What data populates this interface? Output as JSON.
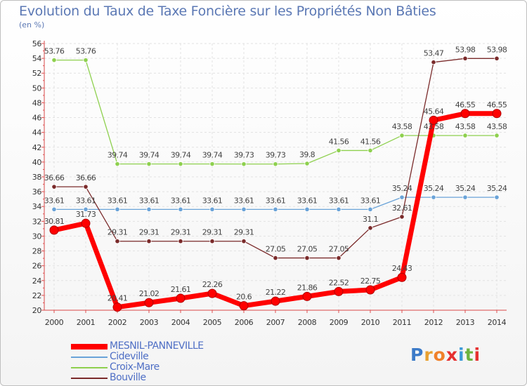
{
  "title": "Evolution du Taux de Taxe Foncière sur les Propriétés Non Bâties",
  "unit_label": "(en %)",
  "brand": {
    "text": "Proxiti",
    "letter_colors": [
      "#3c7bc8",
      "#e8a030",
      "#f0802a",
      "#e63030",
      "#3c9ad8",
      "#6db33f",
      "#e63030"
    ]
  },
  "chart_data": {
    "type": "line",
    "title": "Evolution du Taux de Taxe Foncière sur les Propriétés Non Bâties",
    "ylabel": "(en %)",
    "xlabel": "",
    "x": [
      "2000",
      "2001",
      "2002",
      "2003",
      "2004",
      "2005",
      "2006",
      "2007",
      "2008",
      "2009",
      "2010",
      "2011",
      "2012",
      "2013",
      "2014"
    ],
    "ylim": [
      20,
      56
    ],
    "yticks": [
      20,
      22,
      24,
      26,
      28,
      30,
      32,
      34,
      36,
      38,
      40,
      42,
      44,
      46,
      48,
      50,
      52,
      54,
      56
    ],
    "grid": true,
    "legend_position": "bottom-left",
    "series": [
      {
        "name": "MESNIL-PANNEVILLE",
        "color": "#ff0000",
        "values": [
          30.81,
          31.73,
          20.41,
          21.02,
          21.61,
          22.26,
          20.6,
          21.22,
          21.86,
          22.52,
          22.75,
          24.43,
          45.64,
          46.55,
          46.55
        ],
        "labels": [
          "30.81",
          "31.73",
          "20.41",
          "21.02",
          "21.61",
          "22.26",
          "20.6",
          "21.22",
          "21.86",
          "22.52",
          "22.75",
          "24.43",
          "45.64",
          "46.55",
          "46.55"
        ]
      },
      {
        "name": "Cideville",
        "color": "#6aa3d8",
        "values": [
          33.61,
          33.61,
          33.61,
          33.61,
          33.61,
          33.61,
          33.61,
          33.61,
          33.61,
          33.61,
          33.61,
          35.24,
          35.24,
          35.24,
          35.24
        ],
        "labels": [
          "33.61",
          "33.61",
          "33.61",
          "33.61",
          "33.61",
          "33.61",
          "33.61",
          "33.61",
          "33.61",
          "33.61",
          "33.61",
          "35.24",
          "35.24",
          "35.24",
          "35.24"
        ]
      },
      {
        "name": "Croix-Mare",
        "color": "#8ed04e",
        "values": [
          53.76,
          53.76,
          39.74,
          39.74,
          39.74,
          39.74,
          39.73,
          39.73,
          39.8,
          41.56,
          41.56,
          43.58,
          43.58,
          43.58,
          43.58
        ],
        "labels": [
          "53.76",
          "53.76",
          "39.74",
          "39.74",
          "39.74",
          "39.74",
          "39.73",
          "39.73",
          "39.8",
          "41.56",
          "41.56",
          "43.58",
          "43.58",
          "43.58",
          "43.58"
        ]
      },
      {
        "name": "Bouville",
        "color": "#7a2a2a",
        "values": [
          36.66,
          36.66,
          29.31,
          29.31,
          29.31,
          29.31,
          29.31,
          27.05,
          27.05,
          27.05,
          31.1,
          32.61,
          53.47,
          53.98,
          53.98
        ],
        "labels": [
          "36.66",
          "36.66",
          "29.31",
          "29.31",
          "29.31",
          "29.31",
          "29.31",
          "27.05",
          "27.05",
          "27.05",
          "31.1",
          "32.61",
          "53.47",
          "53.98",
          "53.98"
        ]
      }
    ]
  }
}
